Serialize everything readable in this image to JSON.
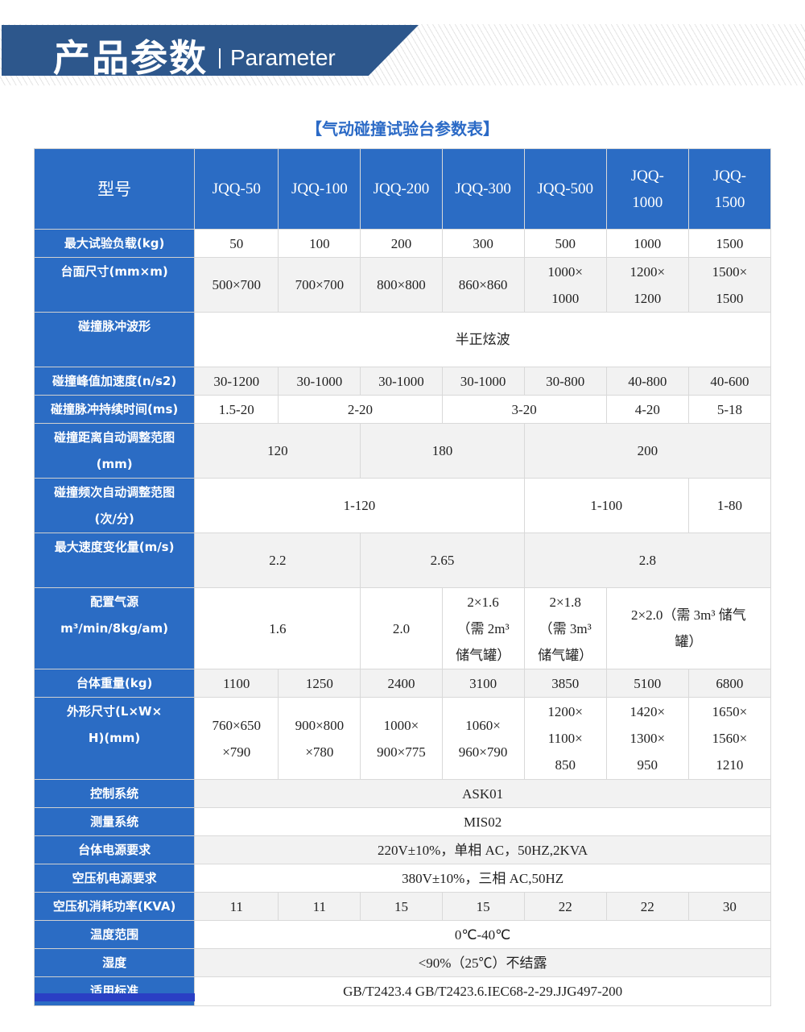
{
  "banner": {
    "title": "产品参数",
    "subtitle": "Parameter"
  },
  "table_title": "【气动碰撞试验台参数表】",
  "colors": {
    "header_blue": "#2b6cc4",
    "banner_blue": "#2d578c",
    "title_blue": "#2b6ac6"
  },
  "table": {
    "header": [
      "型号",
      "JQQ-50",
      "JQQ-100",
      "JQQ-200",
      "JQQ-300",
      "JQQ-500",
      "JQQ-\n1000",
      "JQQ-\n1500"
    ],
    "rows": [
      {
        "label": "最大试验负载(kg)",
        "cells": [
          [
            "50",
            1
          ],
          [
            "100",
            1
          ],
          [
            "200",
            1
          ],
          [
            "300",
            1
          ],
          [
            "500",
            1
          ],
          [
            "1000",
            1
          ],
          [
            "1500",
            1
          ]
        ]
      },
      {
        "label": "台面尺寸(mm×m)",
        "cells": [
          [
            "500×700",
            1
          ],
          [
            "700×700",
            1
          ],
          [
            "800×800",
            1
          ],
          [
            "860×860",
            1
          ],
          [
            "1000×\n1000",
            1
          ],
          [
            "1200×\n1200",
            1
          ],
          [
            "1500×\n1500",
            1
          ]
        ]
      },
      {
        "label": "碰撞脉冲波形",
        "cells": [
          [
            "半正炫波",
            7
          ]
        ]
      },
      {
        "label": "碰撞峰值加速度(n/s2)",
        "cells": [
          [
            "30-1200",
            1
          ],
          [
            "30-1000",
            1
          ],
          [
            "30-1000",
            1
          ],
          [
            "30-1000",
            1
          ],
          [
            "30-800",
            1
          ],
          [
            "40-800",
            1
          ],
          [
            "40-600",
            1
          ]
        ]
      },
      {
        "label": "碰撞脉冲持续时间(ms)",
        "cells": [
          [
            "1.5-20",
            1
          ],
          [
            "2-20",
            2
          ],
          [
            "3-20",
            2
          ],
          [
            "4-20",
            1
          ],
          [
            "5-18",
            1
          ]
        ]
      },
      {
        "label": "碰撞距离自动调整范图\n(mm)",
        "cells": [
          [
            "120",
            2
          ],
          [
            "180",
            2
          ],
          [
            "200",
            3
          ]
        ]
      },
      {
        "label": "碰撞频次自动调整范图\n(次/分)",
        "cells": [
          [
            "1-120",
            4
          ],
          [
            "1-100",
            2
          ],
          [
            "1-80",
            1
          ]
        ]
      },
      {
        "label": "最大速度变化量(m/s)",
        "cells": [
          [
            "2.2",
            2
          ],
          [
            "2.65",
            2
          ],
          [
            "2.8",
            3
          ]
        ]
      },
      {
        "label": "配置气源\nm³/min/8kg/am)",
        "cells": [
          [
            "1.6",
            2
          ],
          [
            "2.0",
            1
          ],
          [
            "2×1.6\n（需 2m³\n储气罐）",
            1
          ],
          [
            "2×1.8\n（需 3m³\n储气罐）",
            1
          ],
          [
            "2×2.0（需 3m³ 储气\n罐）",
            2
          ]
        ]
      },
      {
        "label": "台体重量(kg)",
        "cells": [
          [
            "1100",
            1
          ],
          [
            "1250",
            1
          ],
          [
            "2400",
            1
          ],
          [
            "3100",
            1
          ],
          [
            "3850",
            1
          ],
          [
            "5100",
            1
          ],
          [
            "6800",
            1
          ]
        ]
      },
      {
        "label": "外形尺寸(L×W×\nH)(mm)",
        "cells": [
          [
            "760×650\n×790",
            1
          ],
          [
            "900×800\n×780",
            1
          ],
          [
            "1000×\n900×775",
            1
          ],
          [
            "1060×\n960×790",
            1
          ],
          [
            "1200×\n1100×\n850",
            1
          ],
          [
            "1420×\n1300×\n950",
            1
          ],
          [
            "1650×\n1560×\n1210",
            1
          ]
        ]
      },
      {
        "label": "控制系统",
        "cells": [
          [
            "ASK01",
            7
          ]
        ]
      },
      {
        "label": "测量系统",
        "cells": [
          [
            "MIS02",
            7
          ]
        ]
      },
      {
        "label": "台体电源要求",
        "cells": [
          [
            "220V±10%，单相 AC，50HZ,2KVA",
            7
          ]
        ]
      },
      {
        "label": "空压机电源要求",
        "cells": [
          [
            "380V±10%，三相 AC,50HZ",
            7
          ]
        ]
      },
      {
        "label": "空压机消耗功率(KVA)",
        "cells": [
          [
            "11",
            1
          ],
          [
            "11",
            1
          ],
          [
            "15",
            1
          ],
          [
            "15",
            1
          ],
          [
            "22",
            1
          ],
          [
            "22",
            1
          ],
          [
            "30",
            1
          ]
        ]
      },
      {
        "label": "温度范围",
        "cells": [
          [
            "0℃-40℃",
            7
          ]
        ]
      },
      {
        "label": "湿度",
        "cells": [
          [
            "<90%（25℃）不结露",
            7
          ]
        ]
      },
      {
        "label": "适用标准",
        "cells": [
          [
            "GB/T2423.4 GB/T2423.6.IEC68-2-29.JJG497-200",
            7
          ]
        ]
      }
    ]
  }
}
